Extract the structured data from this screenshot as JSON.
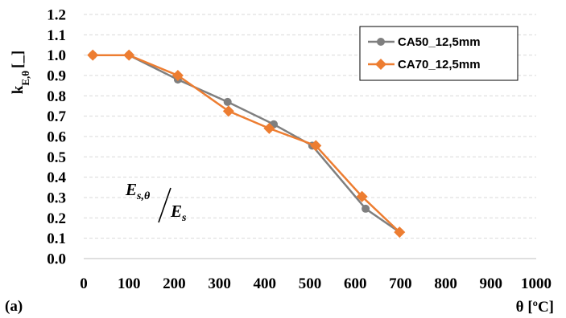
{
  "chart_data": {
    "type": "line",
    "x_ticks": [
      "0",
      "100",
      "200",
      "300",
      "400",
      "500",
      "600",
      "700",
      "800",
      "900",
      "1000"
    ],
    "y_ticks": [
      "0.0",
      "0.1",
      "0.2",
      "0.3",
      "0.4",
      "0.5",
      "0.6",
      "0.7",
      "0.8",
      "0.9",
      "1.0",
      "1.1",
      "1.2"
    ],
    "xlim": [
      0,
      1000
    ],
    "ylim": [
      0,
      1.2
    ],
    "grid": "horizontal dashed",
    "legend_position": "top-right",
    "ylabel": {
      "base": "k",
      "sub": "E,θ",
      "unit": "[_]"
    },
    "xlabel": "θ [ºC]",
    "panel_label": "(a)",
    "annotation": {
      "numerator": "E",
      "num_sub": "s,θ",
      "denominator": "E",
      "den_sub": "s"
    },
    "series": [
      {
        "name": "CA50_12,5mm",
        "color": "#7f7f7f",
        "marker": "circle",
        "points": [
          [
            20,
            1.0
          ],
          [
            100,
            1.0
          ],
          [
            208,
            0.88
          ],
          [
            318,
            0.77
          ],
          [
            420,
            0.66
          ],
          [
            505,
            0.555
          ],
          [
            623,
            0.245
          ],
          [
            698,
            0.13
          ]
        ]
      },
      {
        "name": "CA70_12,5mm",
        "color": "#ed7d31",
        "marker": "diamond",
        "points": [
          [
            20,
            1.0
          ],
          [
            100,
            1.0
          ],
          [
            208,
            0.9
          ],
          [
            320,
            0.725
          ],
          [
            410,
            0.64
          ],
          [
            513,
            0.555
          ],
          [
            615,
            0.305
          ],
          [
            698,
            0.13
          ]
        ]
      }
    ]
  }
}
